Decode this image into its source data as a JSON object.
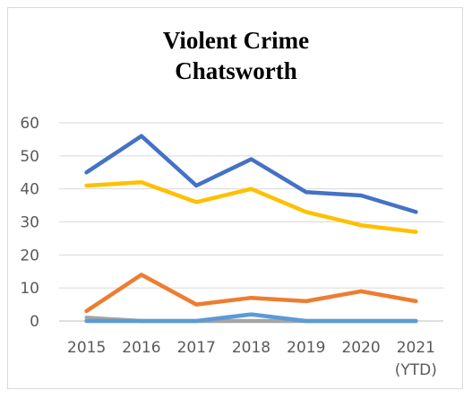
{
  "chart_data": {
    "type": "line",
    "title": "Violent Crime",
    "subtitle": "Chatsworth",
    "categories": [
      "2015",
      "2016",
      "2017",
      "2018",
      "2019",
      "2020",
      "2021"
    ],
    "category_sublabels": [
      "",
      "",
      "",
      "",
      "",
      "",
      "(YTD)"
    ],
    "ylim": [
      0,
      60
    ],
    "yticks": [
      0,
      10,
      20,
      30,
      40,
      50,
      60
    ],
    "grid": true,
    "legend": "none",
    "series": [
      {
        "color": "#4472c4",
        "values": [
          45,
          56,
          41,
          49,
          39,
          38,
          33
        ]
      },
      {
        "color": "#ffc000",
        "values": [
          41,
          42,
          36,
          40,
          33,
          29,
          27
        ]
      },
      {
        "color": "#ed7d31",
        "values": [
          3,
          14,
          5,
          7,
          6,
          9,
          6
        ]
      },
      {
        "color": "#5b9bd5",
        "values": [
          0,
          0,
          0,
          2,
          0,
          0,
          0
        ]
      },
      {
        "color": "#a5a5a5",
        "values": [
          1,
          0,
          0,
          0,
          0,
          0,
          0
        ]
      }
    ]
  }
}
